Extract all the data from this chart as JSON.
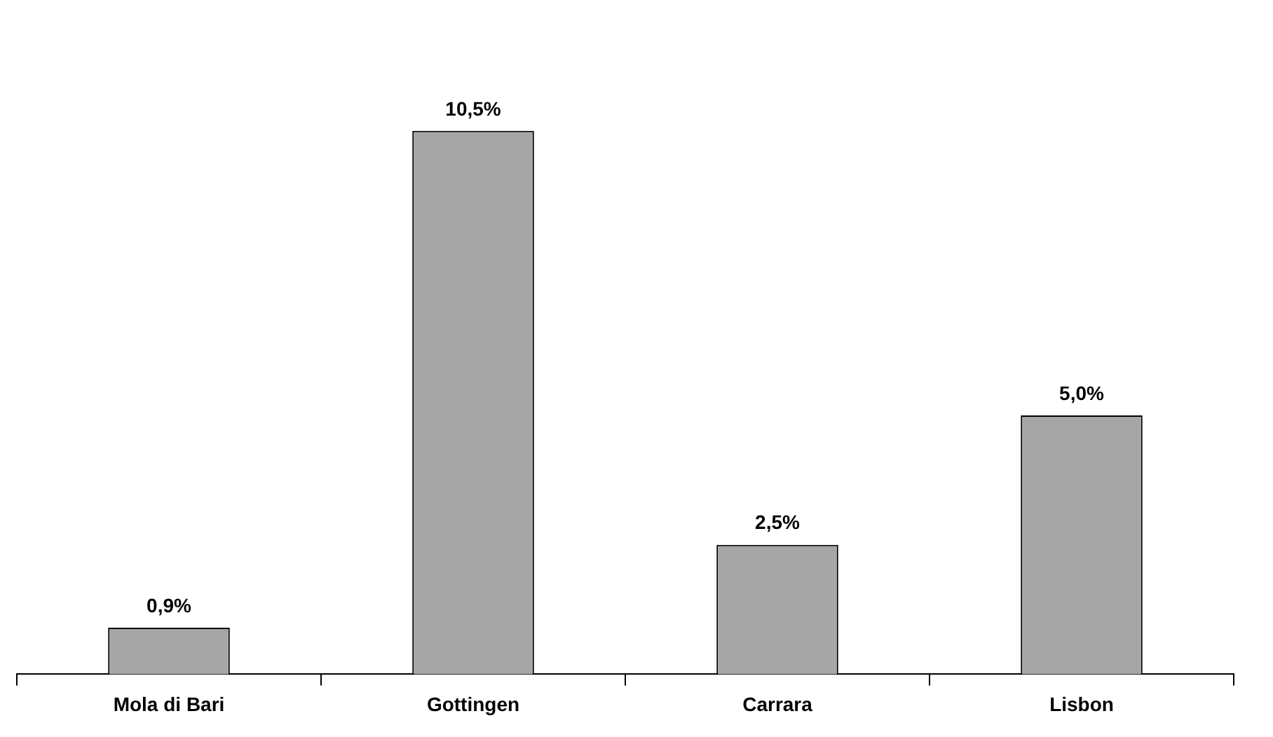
{
  "chart_data": {
    "type": "bar",
    "categories": [
      "Mola di Bari",
      "Gottingen",
      "Carrara",
      "Lisbon"
    ],
    "values": [
      0.9,
      10.5,
      2.5,
      5.0
    ],
    "value_labels": [
      "0,9%",
      "10,5%",
      "2,5%",
      "5,0%"
    ],
    "color": "#a6a6a6",
    "grid": false,
    "legend": false
  }
}
